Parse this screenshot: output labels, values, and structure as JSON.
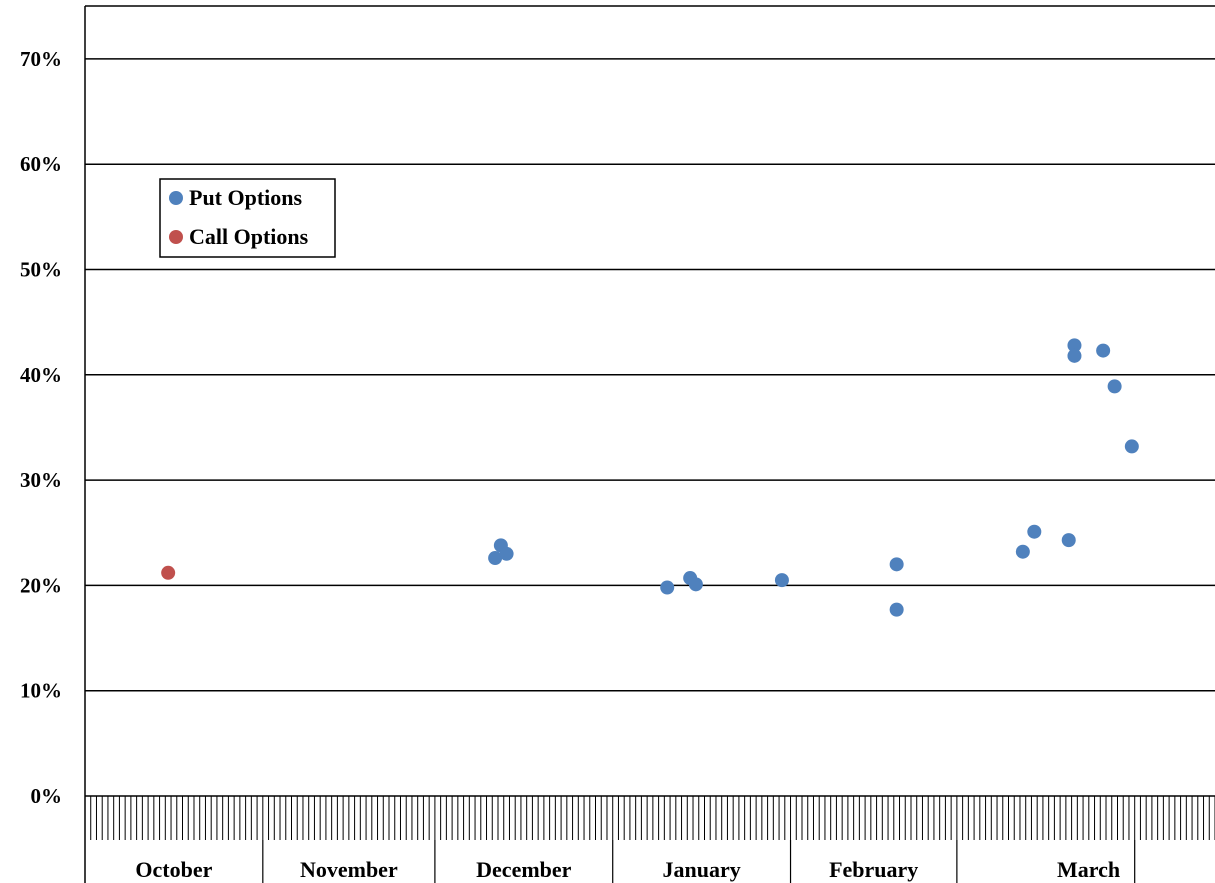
{
  "chart_data": {
    "type": "scatter",
    "title": "",
    "xlabel": "",
    "ylabel": "",
    "ylim": [
      0,
      0.75
    ],
    "y_ticks": [
      {
        "value": 0.0,
        "label": "0%"
      },
      {
        "value": 0.1,
        "label": "10%"
      },
      {
        "value": 0.2,
        "label": "20%"
      },
      {
        "value": 0.3,
        "label": "30%"
      },
      {
        "value": 0.4,
        "label": "40%"
      },
      {
        "value": 0.5,
        "label": "50%"
      },
      {
        "value": 0.6,
        "label": "60%"
      },
      {
        "value": 0.7,
        "label": "70%"
      }
    ],
    "x_axis": {
      "unit": "day",
      "range": [
        0,
        197
      ],
      "month_labels": [
        "October",
        "November",
        "December",
        "January",
        "February",
        "March"
      ],
      "month_boundaries": [
        0,
        31,
        61,
        92,
        123,
        152,
        183
      ],
      "daily_ticks": true
    },
    "grid": true,
    "legend": {
      "position": "upper-left"
    },
    "series": [
      {
        "name": "Put Options",
        "color": "#4f81bd",
        "points": [
          {
            "day": 71.5,
            "value": 0.226
          },
          {
            "day": 72.5,
            "value": 0.238
          },
          {
            "day": 73.5,
            "value": 0.23
          },
          {
            "day": 101.5,
            "value": 0.198
          },
          {
            "day": 105.5,
            "value": 0.207
          },
          {
            "day": 106.5,
            "value": 0.201
          },
          {
            "day": 121.5,
            "value": 0.205
          },
          {
            "day": 141.5,
            "value": 0.22
          },
          {
            "day": 141.5,
            "value": 0.177
          },
          {
            "day": 163.5,
            "value": 0.232
          },
          {
            "day": 165.5,
            "value": 0.251
          },
          {
            "day": 171.5,
            "value": 0.243
          },
          {
            "day": 172.5,
            "value": 0.428
          },
          {
            "day": 172.5,
            "value": 0.418
          },
          {
            "day": 177.5,
            "value": 0.423
          },
          {
            "day": 179.5,
            "value": 0.389
          },
          {
            "day": 182.5,
            "value": 0.332
          }
        ]
      },
      {
        "name": "Call Options",
        "color": "#c0504d",
        "points": [
          {
            "day": 14.5,
            "value": 0.212
          }
        ]
      }
    ]
  }
}
